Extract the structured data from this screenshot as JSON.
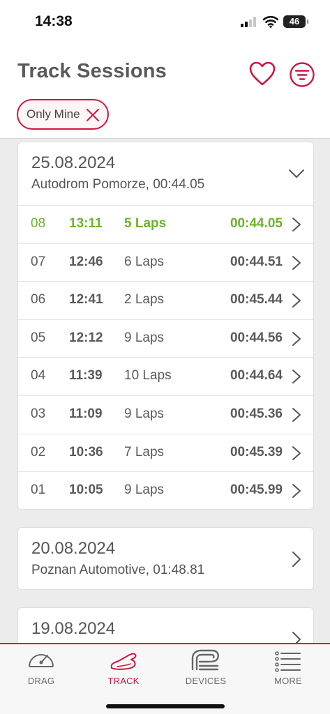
{
  "status": {
    "time": "14:38",
    "battery": "46"
  },
  "header": {
    "title": "Track Sessions",
    "chip_label": "Only Mine"
  },
  "sessions": [
    {
      "date": "25.08.2024",
      "subtitle": "Autodrom Pomorze, 00:44.05",
      "expanded": true,
      "laps": [
        {
          "num": "08",
          "time": "13:11",
          "laps": "5 Laps",
          "best": "00:44.05",
          "highlight": true
        },
        {
          "num": "07",
          "time": "12:46",
          "laps": "6 Laps",
          "best": "00:44.51"
        },
        {
          "num": "06",
          "time": "12:41",
          "laps": "2 Laps",
          "best": "00:45.44"
        },
        {
          "num": "05",
          "time": "12:12",
          "laps": "9 Laps",
          "best": "00:44.56"
        },
        {
          "num": "04",
          "time": "11:39",
          "laps": "10 Laps",
          "best": "00:44.64"
        },
        {
          "num": "03",
          "time": "11:09",
          "laps": "9 Laps",
          "best": "00:45.36"
        },
        {
          "num": "02",
          "time": "10:36",
          "laps": "7 Laps",
          "best": "00:45.39"
        },
        {
          "num": "01",
          "time": "10:05",
          "laps": "9 Laps",
          "best": "00:45.99"
        }
      ]
    },
    {
      "date": "20.08.2024",
      "subtitle": "Poznan Automotive, 01:48.81",
      "expanded": false
    },
    {
      "date": "19.08.2024",
      "subtitle": "",
      "expanded": false
    }
  ],
  "tabs": [
    {
      "label": "DRAG",
      "icon": "gauge-icon",
      "active": false
    },
    {
      "label": "TRACK",
      "icon": "track-icon",
      "active": true
    },
    {
      "label": "DEVICES",
      "icon": "device-icon",
      "active": false
    },
    {
      "label": "MORE",
      "icon": "menu-list-icon",
      "active": false
    }
  ],
  "colors": {
    "accent": "#d0163f",
    "best": "#6bb52a",
    "background": "#ececec"
  }
}
